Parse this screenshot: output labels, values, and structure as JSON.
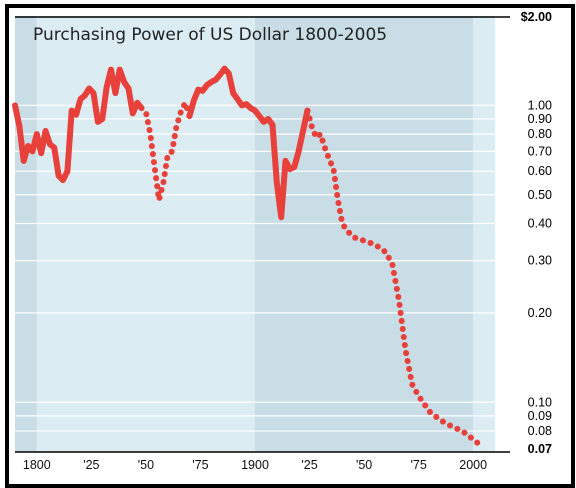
{
  "chart_data": {
    "type": "line",
    "title": "Purchasing Power of US Dollar 1800-2005",
    "xlabel": "",
    "ylabel": "",
    "y_scale": "log",
    "ylim": [
      0.068,
      2.0
    ],
    "xlim": [
      1790,
      2010
    ],
    "x_tick_labels": [
      {
        "x": 1800,
        "label": "1800"
      },
      {
        "x": 1825,
        "label": "'25"
      },
      {
        "x": 1850,
        "label": "'50"
      },
      {
        "x": 1875,
        "label": "'75"
      },
      {
        "x": 1900,
        "label": "1900"
      },
      {
        "x": 1925,
        "label": "'25"
      },
      {
        "x": 1950,
        "label": "'50"
      },
      {
        "x": 1975,
        "label": "'75"
      },
      {
        "x": 2000,
        "label": "2000"
      }
    ],
    "y_tick_labels": [
      {
        "y": 2.0,
        "label": "$2.00",
        "bold": true
      },
      {
        "y": 1.0,
        "label": "1.00"
      },
      {
        "y": 0.9,
        "label": "0.90"
      },
      {
        "y": 0.8,
        "label": "0.80"
      },
      {
        "y": 0.7,
        "label": "0.70"
      },
      {
        "y": 0.6,
        "label": "0.60"
      },
      {
        "y": 0.5,
        "label": "0.50"
      },
      {
        "y": 0.4,
        "label": "0.40"
      },
      {
        "y": 0.3,
        "label": "0.30"
      },
      {
        "y": 0.2,
        "label": "0.20"
      },
      {
        "y": 0.1,
        "label": "0.10"
      },
      {
        "y": 0.09,
        "label": "0.09"
      },
      {
        "y": 0.08,
        "label": "0.08"
      },
      {
        "y": 0.07,
        "label": "0.07",
        "bold": true
      }
    ],
    "grid": true,
    "bands": [
      {
        "from": 1790,
        "to": 1800,
        "color": "#c8dde5"
      },
      {
        "from": 1800,
        "to": 1900,
        "color": "#dcecf3"
      },
      {
        "from": 1900,
        "to": 2000,
        "color": "#c8dde5"
      },
      {
        "from": 2000,
        "to": 2010,
        "color": "#dcecf3"
      }
    ],
    "line_color": "#e8413c",
    "series": [
      {
        "style": "solid",
        "points": [
          [
            1790,
            1.0
          ],
          [
            1792,
            0.85
          ],
          [
            1794,
            0.65
          ],
          [
            1796,
            0.73
          ],
          [
            1798,
            0.7
          ],
          [
            1800,
            0.8
          ],
          [
            1802,
            0.69
          ],
          [
            1804,
            0.82
          ],
          [
            1806,
            0.74
          ],
          [
            1808,
            0.72
          ],
          [
            1810,
            0.58
          ],
          [
            1812,
            0.56
          ],
          [
            1814,
            0.6
          ],
          [
            1816,
            0.96
          ],
          [
            1818,
            0.93
          ],
          [
            1820,
            1.05
          ],
          [
            1822,
            1.08
          ],
          [
            1824,
            1.14
          ],
          [
            1826,
            1.1
          ],
          [
            1828,
            0.88
          ],
          [
            1830,
            0.9
          ],
          [
            1832,
            1.15
          ],
          [
            1834,
            1.32
          ],
          [
            1836,
            1.1
          ],
          [
            1838,
            1.32
          ],
          [
            1840,
            1.2
          ],
          [
            1842,
            1.14
          ],
          [
            1844,
            0.94
          ],
          [
            1846,
            1.02
          ],
          [
            1848,
            0.98
          ]
        ]
      },
      {
        "style": "dotted",
        "points": [
          [
            1848,
            0.98
          ],
          [
            1850,
            0.95
          ],
          [
            1852,
            0.8
          ],
          [
            1854,
            0.62
          ],
          [
            1856,
            0.48
          ],
          [
            1858,
            0.55
          ],
          [
            1860,
            0.68
          ],
          [
            1862,
            0.7
          ],
          [
            1864,
            0.85
          ],
          [
            1866,
            0.95
          ],
          [
            1868,
            1.02
          ],
          [
            1870,
            0.92
          ]
        ]
      },
      {
        "style": "solid",
        "points": [
          [
            1870,
            0.92
          ],
          [
            1872,
            1.04
          ],
          [
            1874,
            1.13
          ],
          [
            1876,
            1.12
          ],
          [
            1878,
            1.17
          ],
          [
            1880,
            1.2
          ],
          [
            1882,
            1.22
          ],
          [
            1884,
            1.27
          ],
          [
            1886,
            1.33
          ],
          [
            1888,
            1.28
          ],
          [
            1890,
            1.1
          ],
          [
            1892,
            1.05
          ],
          [
            1894,
            1.0
          ],
          [
            1896,
            1.01
          ],
          [
            1898,
            0.98
          ],
          [
            1900,
            0.96
          ],
          [
            1902,
            0.92
          ],
          [
            1904,
            0.88
          ],
          [
            1906,
            0.9
          ],
          [
            1908,
            0.86
          ],
          [
            1910,
            0.55
          ],
          [
            1912,
            0.42
          ],
          [
            1914,
            0.65
          ],
          [
            1916,
            0.61
          ],
          [
            1918,
            0.62
          ],
          [
            1920,
            0.7
          ],
          [
            1922,
            0.82
          ],
          [
            1924,
            0.96
          ]
        ]
      },
      {
        "style": "dotted",
        "points": [
          [
            1924,
            0.96
          ],
          [
            1926,
            0.85
          ],
          [
            1928,
            0.78
          ],
          [
            1930,
            0.8
          ],
          [
            1932,
            0.72
          ],
          [
            1934,
            0.66
          ],
          [
            1936,
            0.61
          ],
          [
            1938,
            0.48
          ],
          [
            1940,
            0.4
          ],
          [
            1942,
            0.38
          ],
          [
            1945,
            0.36
          ],
          [
            1950,
            0.35
          ],
          [
            1955,
            0.34
          ],
          [
            1960,
            0.32
          ],
          [
            1963,
            0.29
          ],
          [
            1966,
            0.22
          ],
          [
            1969,
            0.15
          ],
          [
            1972,
            0.115
          ],
          [
            1975,
            0.105
          ],
          [
            1980,
            0.093
          ],
          [
            1985,
            0.087
          ],
          [
            1990,
            0.083
          ],
          [
            1995,
            0.08
          ],
          [
            2000,
            0.075
          ],
          [
            2004,
            0.071
          ]
        ]
      }
    ]
  }
}
